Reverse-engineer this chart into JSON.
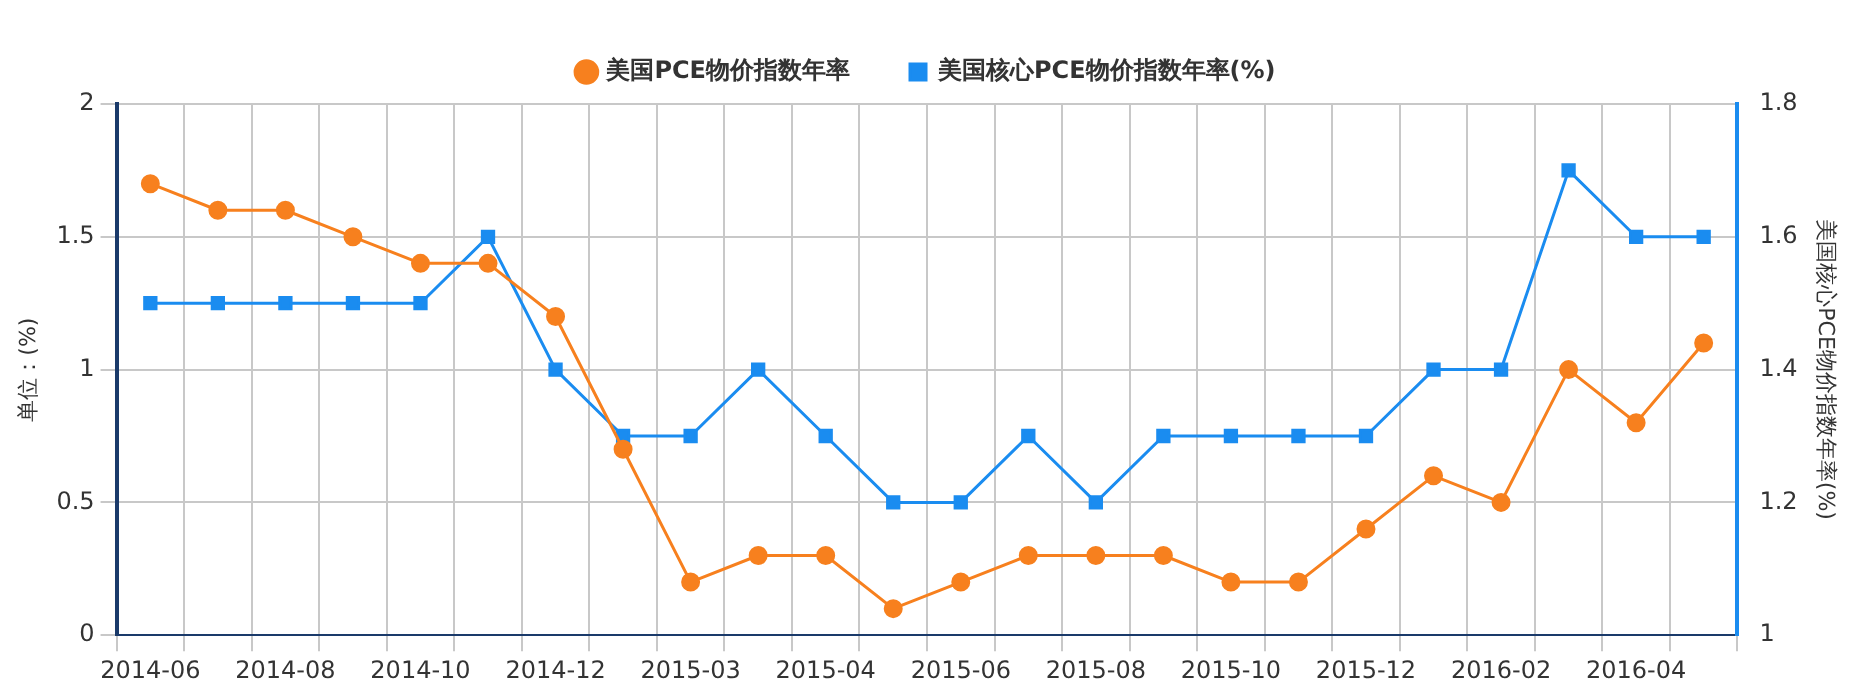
{
  "chart_data": {
    "type": "line",
    "ylabel": "单位：(%)",
    "y2label": "美国核心PCE物价指数年率(%)",
    "categories": [
      "2014-06",
      null,
      "2014-08",
      null,
      "2014-10",
      null,
      "2014-12",
      null,
      "2015-03",
      null,
      "2015-04",
      null,
      "2015-06",
      null,
      "2015-08",
      null,
      "2015-10",
      null,
      "2015-12",
      null,
      "2016-02",
      null,
      "2016-04",
      null
    ],
    "series": [
      {
        "name": "美国PCE物价指数年率",
        "color": "#f7801e",
        "marker": "circle",
        "values": [
          1.7,
          1.6,
          1.6,
          1.5,
          1.4,
          1.4,
          1.2,
          0.7,
          0.2,
          0.3,
          0.3,
          0.1,
          0.2,
          0.3,
          0.3,
          0.3,
          0.2,
          0.2,
          0.4,
          0.6,
          0.5,
          1.0,
          0.8,
          1.1
        ]
      },
      {
        "name": "美国核心PCE物价指数年率(%)",
        "color": "#1a8cf0",
        "marker": "square",
        "axis": "y2",
        "values": [
          1.5,
          1.5,
          1.5,
          1.5,
          1.5,
          1.6,
          1.4,
          1.3,
          1.3,
          1.4,
          1.3,
          1.2,
          1.2,
          1.3,
          1.2,
          1.3,
          1.3,
          1.3,
          1.3,
          1.4,
          1.4,
          1.7,
          1.6,
          1.6
        ]
      }
    ],
    "ylim": [
      0,
      2
    ],
    "yticks": [
      0,
      0.5,
      1,
      1.5,
      2
    ],
    "y2lim": [
      1,
      1.8
    ],
    "y2ticks": [
      1,
      1.2,
      1.4,
      1.6,
      1.8
    ],
    "grid": true,
    "legend": "top"
  }
}
